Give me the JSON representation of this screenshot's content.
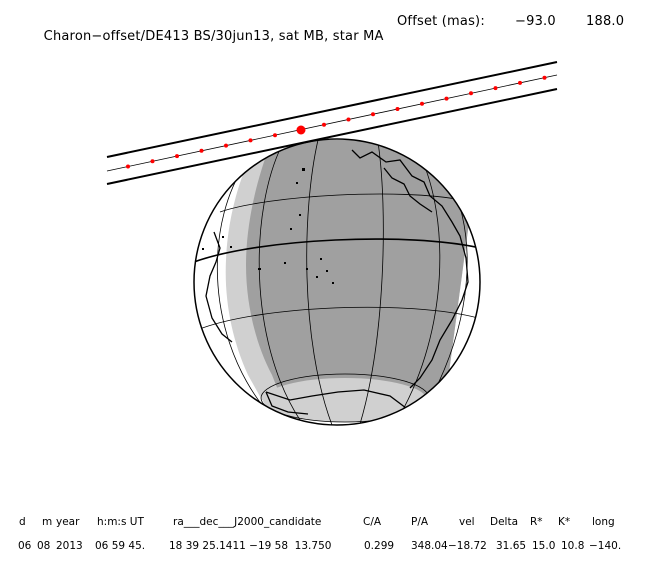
{
  "header": {
    "title": "Charon−offset/DE413 BS/30jun13, sat MB, star MA",
    "offset_label": "Offset (mas):",
    "offset_ra": "−93.0",
    "offset_dec": "188.0"
  },
  "table": {
    "headers": [
      "d",
      "m",
      "year",
      "h:m:s UT",
      "ra___dec___J2000_candidate",
      "C/A",
      "P/A",
      "vel",
      "Delta",
      "R*",
      "K*",
      "long"
    ],
    "values": [
      "06",
      "08",
      "2013",
      "06 59 45.",
      "18 39 25.1411 −19 58  13.750",
      "0.299",
      "348.04",
      "−18.72",
      "31.65",
      "15.0",
      "10.8",
      "−140."
    ]
  },
  "colors": {
    "night": "#a0a0a0",
    "twilight": "#d0d0d0",
    "day": "#ffffff",
    "track_points": "#ff0000",
    "lines": "#000000"
  }
}
